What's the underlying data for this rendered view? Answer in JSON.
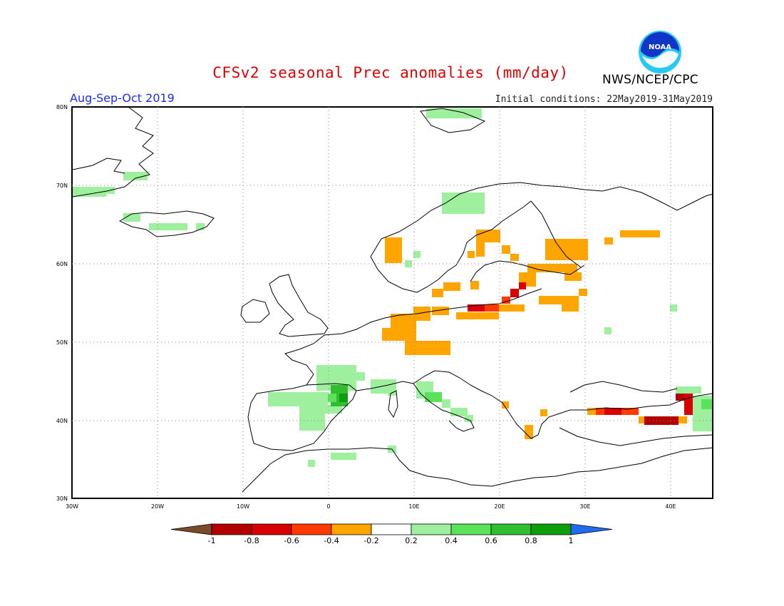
{
  "title": "CFSv2 seasonal Prec anomalies (mm/day)",
  "period": "Aug-Sep-Oct 2019",
  "initial_conditions": "Initial conditions: 22May2019-31May2019",
  "organization": "NWS/NCEP/CPC",
  "logo_text": "NOAA",
  "units": "mm/day",
  "lon_labels": [
    "30W",
    "20W",
    "10W",
    "0",
    "10E",
    "20E",
    "30E",
    "40E"
  ],
  "lat_labels": [
    "80N",
    "70N",
    "60N",
    "50N",
    "40N",
    "30N"
  ],
  "colorbar": {
    "labels": [
      "-1",
      "-0.8",
      "-0.6",
      "-0.4",
      "-0.2",
      "0.2",
      "0.4",
      "0.6",
      "0.8",
      "1"
    ],
    "colors": [
      "#7a4a2a",
      "#b30000",
      "#d80000",
      "#ff3a00",
      "#ffa500",
      "#ffffff",
      "#9ef09e",
      "#5be25b",
      "#2fbe2f",
      "#0d9e0d",
      "#1f6cf0"
    ]
  },
  "anomaly_colors": {
    "dry_1": "#ffa500",
    "dry_2": "#ff3a00",
    "dry_3": "#d80000",
    "dry_4": "#b30000",
    "wet_1": "#9ef09e",
    "wet_2": "#5be25b",
    "wet_3": "#2fbe2f",
    "wet_4": "#0d9e0d"
  }
}
